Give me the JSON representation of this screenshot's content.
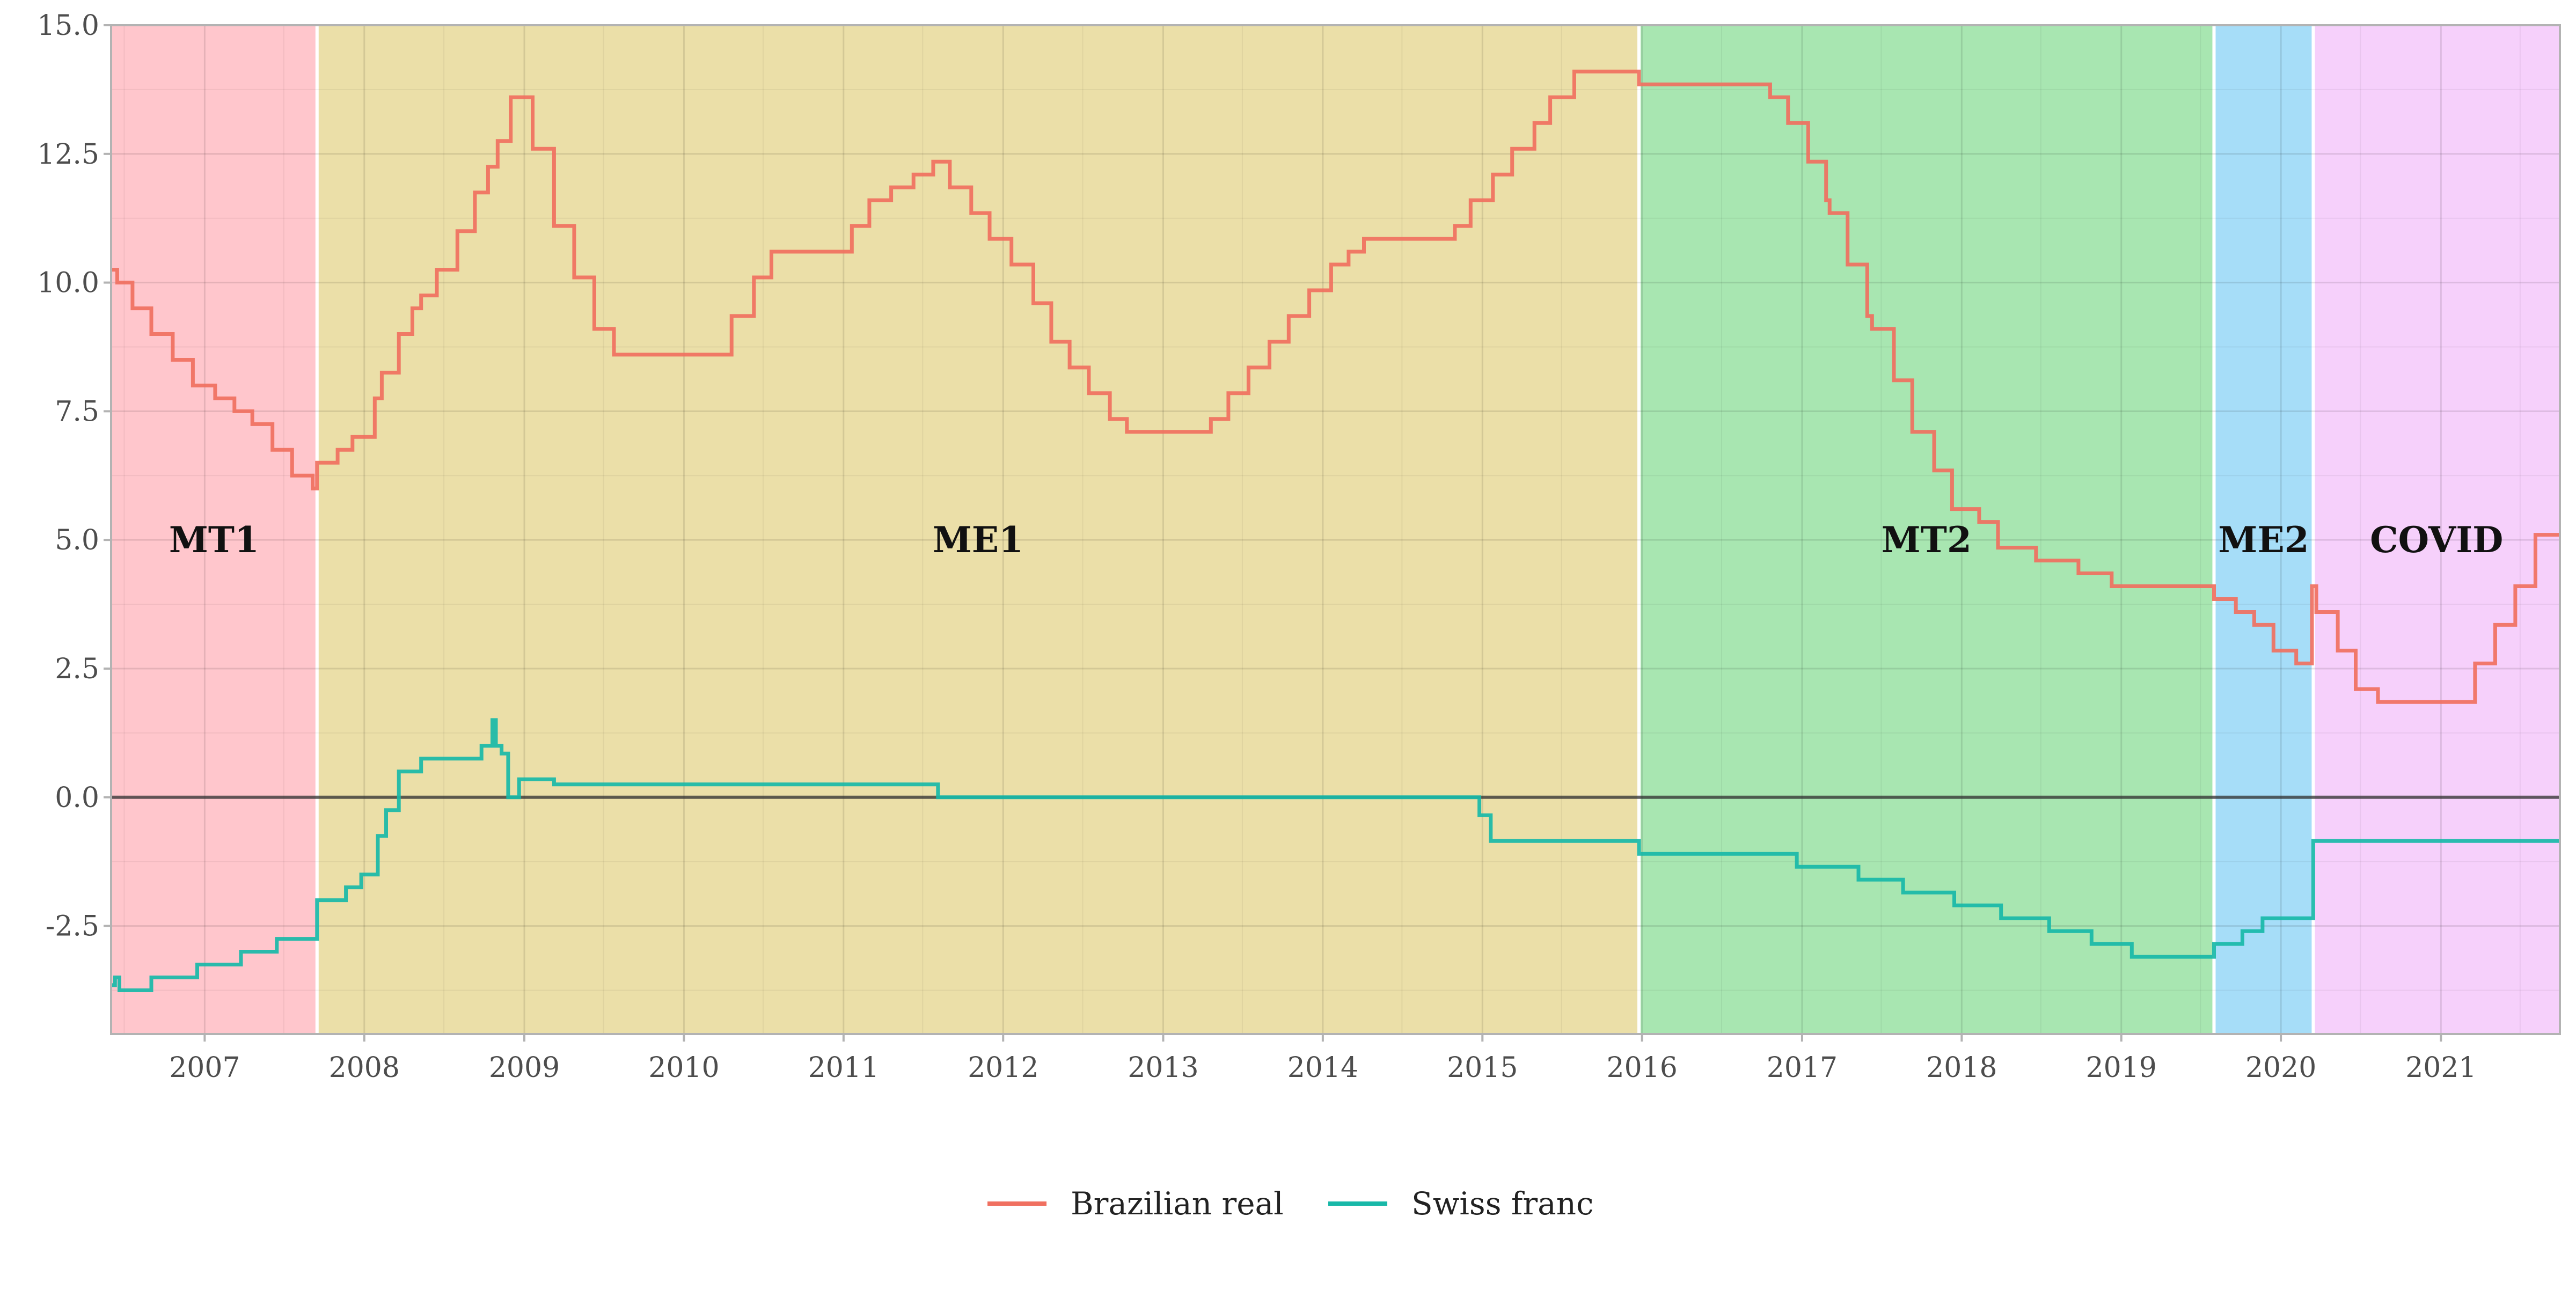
{
  "chart_data": {
    "type": "line",
    "title": "",
    "xlabel": "",
    "ylabel": "",
    "x_type": "date",
    "xlim": [
      "2006-06-01",
      "2021-09-30"
    ],
    "ylim": [
      -4.6,
      15.0
    ],
    "x_ticks": [
      "2007",
      "2008",
      "2009",
      "2010",
      "2011",
      "2012",
      "2013",
      "2014",
      "2015",
      "2016",
      "2017",
      "2018",
      "2019",
      "2020",
      "2021"
    ],
    "y_ticks": [
      "15.0",
      "12.5",
      "10.0",
      "7.5",
      "5.0",
      "2.5",
      "0.0",
      "-2.5"
    ],
    "y_tick_values": [
      15.0,
      12.5,
      10.0,
      7.5,
      5.0,
      2.5,
      0.0,
      -2.5
    ],
    "grid": true,
    "zero_line": true,
    "legend_position": "bottom",
    "regimes": [
      {
        "label": "MT1",
        "start": "2006-06-01",
        "end": "2007-09-15",
        "color": "#ffc6cc"
      },
      {
        "label": "ME1",
        "start": "2007-09-15",
        "end": "2015-12-25",
        "color": "#ebdfa8"
      },
      {
        "label": "MT2",
        "start": "2015-12-25",
        "end": "2019-08-01",
        "color": "#a8e6b1"
      },
      {
        "label": "ME2",
        "start": "2019-08-01",
        "end": "2020-03-15",
        "color": "#a6ddf8"
      },
      {
        "label": "COVID",
        "start": "2020-03-15",
        "end": "2021-09-30",
        "color": "#f6d0fb"
      }
    ],
    "series": [
      {
        "name": "Brazilian real",
        "color": "#f07060",
        "points": [
          [
            "2006-06-01",
            10.25
          ],
          [
            "2006-06-15",
            10.0
          ],
          [
            "2006-07-20",
            9.5
          ],
          [
            "2006-09-01",
            9.0
          ],
          [
            "2006-10-20",
            8.5
          ],
          [
            "2006-12-05",
            8.0
          ],
          [
            "2007-01-25",
            7.75
          ],
          [
            "2007-03-10",
            7.5
          ],
          [
            "2007-04-20",
            7.25
          ],
          [
            "2007-06-05",
            6.75
          ],
          [
            "2007-07-20",
            6.25
          ],
          [
            "2007-09-05",
            6.0
          ],
          [
            "2007-09-15",
            6.5
          ],
          [
            "2007-11-01",
            6.75
          ],
          [
            "2007-12-05",
            7.0
          ],
          [
            "2008-01-25",
            7.75
          ],
          [
            "2008-02-10",
            8.25
          ],
          [
            "2008-03-20",
            9.0
          ],
          [
            "2008-04-20",
            9.5
          ],
          [
            "2008-05-10",
            9.75
          ],
          [
            "2008-06-15",
            10.25
          ],
          [
            "2008-08-01",
            11.0
          ],
          [
            "2008-09-10",
            11.75
          ],
          [
            "2008-10-10",
            12.25
          ],
          [
            "2008-11-01",
            12.75
          ],
          [
            "2008-12-01",
            13.6
          ],
          [
            "2009-01-20",
            12.6
          ],
          [
            "2009-03-10",
            11.1
          ],
          [
            "2009-04-25",
            10.1
          ],
          [
            "2009-06-10",
            9.1
          ],
          [
            "2009-07-25",
            8.6
          ],
          [
            "2010-04-20",
            9.35
          ],
          [
            "2010-06-10",
            10.1
          ],
          [
            "2010-07-20",
            10.6
          ],
          [
            "2011-01-20",
            11.1
          ],
          [
            "2011-03-01",
            11.6
          ],
          [
            "2011-04-20",
            11.85
          ],
          [
            "2011-06-10",
            12.1
          ],
          [
            "2011-07-25",
            12.35
          ],
          [
            "2011-09-01",
            11.85
          ],
          [
            "2011-10-20",
            11.35
          ],
          [
            "2011-12-01",
            10.85
          ],
          [
            "2012-01-20",
            10.35
          ],
          [
            "2012-03-10",
            9.6
          ],
          [
            "2012-04-20",
            8.85
          ],
          [
            "2012-06-01",
            8.35
          ],
          [
            "2012-07-15",
            7.85
          ],
          [
            "2012-09-01",
            7.35
          ],
          [
            "2012-10-10",
            7.1
          ],
          [
            "2013-04-20",
            7.35
          ],
          [
            "2013-05-30",
            7.85
          ],
          [
            "2013-07-15",
            8.35
          ],
          [
            "2013-09-01",
            8.85
          ],
          [
            "2013-10-15",
            9.35
          ],
          [
            "2013-12-01",
            9.85
          ],
          [
            "2014-01-20",
            10.35
          ],
          [
            "2014-03-01",
            10.6
          ],
          [
            "2014-04-05",
            10.85
          ],
          [
            "2014-10-30",
            11.1
          ],
          [
            "2014-12-05",
            11.6
          ],
          [
            "2015-01-25",
            12.1
          ],
          [
            "2015-03-10",
            12.6
          ],
          [
            "2015-04-30",
            13.1
          ],
          [
            "2015-06-05",
            13.6
          ],
          [
            "2015-07-30",
            14.1
          ],
          [
            "2015-12-25",
            13.85
          ],
          [
            "2016-10-20",
            13.6
          ],
          [
            "2016-11-30",
            13.1
          ],
          [
            "2017-01-15",
            12.35
          ],
          [
            "2017-02-25",
            11.6
          ],
          [
            "2017-03-05",
            11.35
          ],
          [
            "2017-04-15",
            10.35
          ],
          [
            "2017-05-30",
            9.35
          ],
          [
            "2017-06-10",
            9.1
          ],
          [
            "2017-07-30",
            8.1
          ],
          [
            "2017-09-10",
            7.1
          ],
          [
            "2017-10-30",
            6.35
          ],
          [
            "2017-12-10",
            5.6
          ],
          [
            "2018-02-10",
            5.35
          ],
          [
            "2018-03-25",
            4.85
          ],
          [
            "2018-06-20",
            4.6
          ],
          [
            "2018-09-25",
            4.35
          ],
          [
            "2018-12-10",
            4.1
          ],
          [
            "2019-08-01",
            3.85
          ],
          [
            "2019-09-20",
            3.6
          ],
          [
            "2019-11-01",
            3.35
          ],
          [
            "2019-12-15",
            2.85
          ],
          [
            "2020-02-05",
            2.6
          ],
          [
            "2020-03-12",
            4.1
          ],
          [
            "2020-03-22",
            3.6
          ],
          [
            "2020-05-10",
            2.85
          ],
          [
            "2020-06-20",
            2.1
          ],
          [
            "2020-08-10",
            1.85
          ],
          [
            "2021-03-20",
            2.6
          ],
          [
            "2021-05-05",
            3.35
          ],
          [
            "2021-06-20",
            4.1
          ],
          [
            "2021-08-05",
            5.1
          ],
          [
            "2021-09-30",
            5.1
          ]
        ]
      },
      {
        "name": "Swiss franc",
        "color": "#18b8a8",
        "points": [
          [
            "2006-06-01",
            -3.65
          ],
          [
            "2006-06-10",
            -3.5
          ],
          [
            "2006-06-20",
            -3.75
          ],
          [
            "2006-09-01",
            -3.5
          ],
          [
            "2006-12-15",
            -3.25
          ],
          [
            "2007-03-25",
            -3.0
          ],
          [
            "2007-06-15",
            -2.75
          ],
          [
            "2007-09-15",
            -2.0
          ],
          [
            "2007-11-20",
            -1.75
          ],
          [
            "2007-12-25",
            -1.5
          ],
          [
            "2008-02-01",
            -0.75
          ],
          [
            "2008-02-20",
            -0.25
          ],
          [
            "2008-03-20",
            0.5
          ],
          [
            "2008-05-10",
            0.75
          ],
          [
            "2008-09-25",
            1.0
          ],
          [
            "2008-10-20",
            1.5
          ],
          [
            "2008-10-28",
            1.0
          ],
          [
            "2008-11-10",
            0.85
          ],
          [
            "2008-11-25",
            0.0
          ],
          [
            "2008-12-20",
            0.35
          ],
          [
            "2009-03-10",
            0.25
          ],
          [
            "2011-08-05",
            0.0
          ],
          [
            "2014-12-25",
            -0.35
          ],
          [
            "2015-01-20",
            -0.85
          ],
          [
            "2015-12-25",
            -1.1
          ],
          [
            "2016-12-20",
            -1.35
          ],
          [
            "2017-05-10",
            -1.6
          ],
          [
            "2017-08-20",
            -1.85
          ],
          [
            "2017-12-15",
            -2.1
          ],
          [
            "2018-04-01",
            -2.35
          ],
          [
            "2018-07-20",
            -2.6
          ],
          [
            "2018-10-25",
            -2.85
          ],
          [
            "2019-01-25",
            -3.1
          ],
          [
            "2019-08-01",
            -2.85
          ],
          [
            "2019-10-05",
            -2.6
          ],
          [
            "2019-11-20",
            -2.35
          ],
          [
            "2020-03-15",
            -0.85
          ],
          [
            "2021-09-30",
            -0.85
          ]
        ]
      }
    ]
  }
}
